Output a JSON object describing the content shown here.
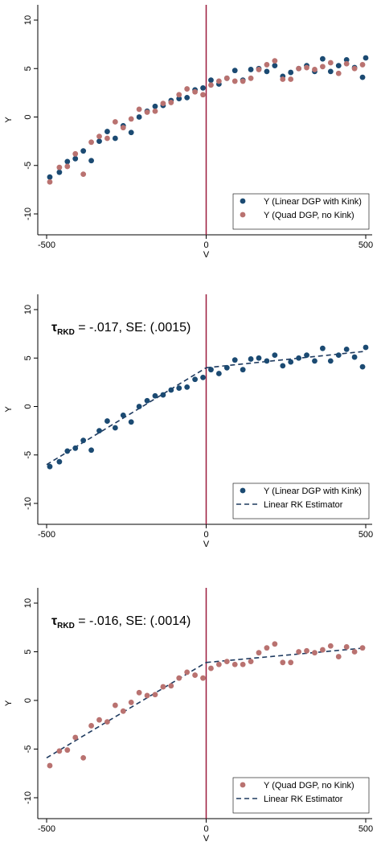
{
  "colors": {
    "linear_points": "#1b4a72",
    "quad_points": "#b97270",
    "cutoff_line": "#9b1c3d",
    "fit_line": "#1e3a5f"
  },
  "chart_data": [
    {
      "type": "scatter",
      "title": "",
      "xlabel": "V",
      "ylabel": "Y",
      "xlim": [
        -500,
        500
      ],
      "ylim": [
        -10,
        10
      ],
      "xticks": [
        "-500",
        "0",
        "500"
      ],
      "yticks": [
        "-10",
        "-5",
        "0",
        "5",
        "10"
      ],
      "cutoff_x": 0,
      "legend_position": "bottom-right",
      "series": [
        {
          "name": "Y (Linear DGP with Kink)",
          "style": "linear_points",
          "x": [
            -490,
            -460,
            -435,
            -410,
            -385,
            -360,
            -335,
            -310,
            -285,
            -260,
            -235,
            -210,
            -185,
            -160,
            -135,
            -110,
            -85,
            -60,
            -35,
            -10,
            15,
            40,
            65,
            90,
            115,
            140,
            165,
            190,
            215,
            240,
            265,
            290,
            315,
            340,
            365,
            390,
            415,
            440,
            465,
            490,
            500
          ],
          "y": [
            -6.2,
            -5.7,
            -4.6,
            -4.3,
            -3.5,
            -4.5,
            -2.5,
            -1.5,
            -2.2,
            -0.9,
            -1.6,
            0.0,
            0.6,
            1.1,
            1.2,
            1.7,
            1.9,
            2.0,
            2.8,
            3.0,
            3.8,
            3.4,
            4.0,
            4.8,
            3.8,
            4.9,
            5.0,
            4.7,
            5.3,
            4.2,
            4.6,
            5.0,
            5.3,
            4.7,
            6.0,
            4.7,
            5.3,
            5.9,
            5.1,
            4.1,
            6.1
          ]
        },
        {
          "name": "Y (Quad DGP, no Kink)",
          "style": "quad_points",
          "x": [
            -490,
            -460,
            -435,
            -410,
            -385,
            -360,
            -335,
            -310,
            -285,
            -260,
            -235,
            -210,
            -185,
            -160,
            -135,
            -110,
            -85,
            -60,
            -35,
            -10,
            15,
            40,
            65,
            90,
            115,
            140,
            165,
            190,
            215,
            240,
            265,
            290,
            315,
            340,
            365,
            390,
            415,
            440,
            465,
            490
          ],
          "y": [
            -6.7,
            -5.2,
            -5.1,
            -3.8,
            -5.9,
            -2.6,
            -2.0,
            -2.2,
            -0.5,
            -1.1,
            -0.2,
            0.8,
            0.5,
            0.6,
            1.4,
            1.5,
            2.3,
            2.9,
            2.6,
            2.3,
            3.3,
            3.7,
            4.0,
            3.7,
            3.7,
            4.0,
            4.9,
            5.4,
            5.8,
            3.9,
            3.9,
            5.0,
            5.1,
            4.9,
            5.2,
            5.6,
            4.5,
            5.5,
            5.0,
            5.4
          ]
        }
      ]
    },
    {
      "type": "scatter",
      "title": "",
      "xlabel": "V",
      "ylabel": "Y",
      "xlim": [
        -500,
        500
      ],
      "ylim": [
        -10,
        10
      ],
      "xticks": [
        "-500",
        "0",
        "500"
      ],
      "yticks": [
        "-10",
        "-5",
        "0",
        "5",
        "10"
      ],
      "cutoff_x": 0,
      "legend_position": "bottom-right",
      "annotation": {
        "tau": "τ",
        "sub": "RKD",
        "rest": " = -.017, SE: (.0015)"
      },
      "series": [
        {
          "name": "Y (Linear DGP with Kink)",
          "style": "linear_points",
          "x": [
            -490,
            -460,
            -435,
            -410,
            -385,
            -360,
            -335,
            -310,
            -285,
            -260,
            -235,
            -210,
            -185,
            -160,
            -135,
            -110,
            -85,
            -60,
            -35,
            -10,
            15,
            40,
            65,
            90,
            115,
            140,
            165,
            190,
            215,
            240,
            265,
            290,
            315,
            340,
            365,
            390,
            415,
            440,
            465,
            490,
            500
          ],
          "y": [
            -6.2,
            -5.7,
            -4.6,
            -4.3,
            -3.5,
            -4.5,
            -2.5,
            -1.5,
            -2.2,
            -0.9,
            -1.6,
            0.0,
            0.6,
            1.1,
            1.2,
            1.7,
            1.9,
            2.0,
            2.8,
            3.0,
            3.8,
            3.4,
            4.0,
            4.8,
            3.8,
            4.9,
            5.0,
            4.7,
            5.3,
            4.2,
            4.6,
            5.0,
            5.3,
            4.7,
            6.0,
            4.7,
            5.3,
            5.9,
            5.1,
            4.1,
            6.1
          ]
        }
      ],
      "fit_line": {
        "name": "Linear RK Estimator",
        "style": "fit_line",
        "segments": [
          {
            "x": [
              -500,
              0
            ],
            "y": [
              -6.0,
              4.0
            ]
          },
          {
            "x": [
              0,
              500
            ],
            "y": [
              4.0,
              5.7
            ]
          }
        ]
      }
    },
    {
      "type": "scatter",
      "title": "",
      "xlabel": "V",
      "ylabel": "Y",
      "xlim": [
        -500,
        500
      ],
      "ylim": [
        -10,
        10
      ],
      "xticks": [
        "-500",
        "0",
        "500"
      ],
      "yticks": [
        "-10",
        "-5",
        "0",
        "5",
        "10"
      ],
      "cutoff_x": 0,
      "legend_position": "bottom-right",
      "annotation": {
        "tau": "τ",
        "sub": "RKD",
        "rest": " = -.016, SE: (.0014)"
      },
      "series": [
        {
          "name": "Y (Quad DGP, no Kink)",
          "style": "quad_points",
          "x": [
            -490,
            -460,
            -435,
            -410,
            -385,
            -360,
            -335,
            -310,
            -285,
            -260,
            -235,
            -210,
            -185,
            -160,
            -135,
            -110,
            -85,
            -60,
            -35,
            -10,
            15,
            40,
            65,
            90,
            115,
            140,
            165,
            190,
            215,
            240,
            265,
            290,
            315,
            340,
            365,
            390,
            415,
            440,
            465,
            490
          ],
          "y": [
            -6.7,
            -5.2,
            -5.1,
            -3.8,
            -5.9,
            -2.6,
            -2.0,
            -2.2,
            -0.5,
            -1.1,
            -0.2,
            0.8,
            0.5,
            0.6,
            1.4,
            1.5,
            2.3,
            2.9,
            2.6,
            2.3,
            3.3,
            3.7,
            4.0,
            3.7,
            3.7,
            4.0,
            4.9,
            5.4,
            5.8,
            3.9,
            3.9,
            5.0,
            5.1,
            4.9,
            5.2,
            5.6,
            4.5,
            5.5,
            5.0,
            5.4
          ]
        }
      ],
      "fit_line": {
        "name": "Linear RK Estimator",
        "style": "fit_line",
        "segments": [
          {
            "x": [
              -500,
              0
            ],
            "y": [
              -5.9,
              3.9
            ]
          },
          {
            "x": [
              0,
              500
            ],
            "y": [
              3.9,
              5.4
            ]
          }
        ]
      }
    }
  ]
}
